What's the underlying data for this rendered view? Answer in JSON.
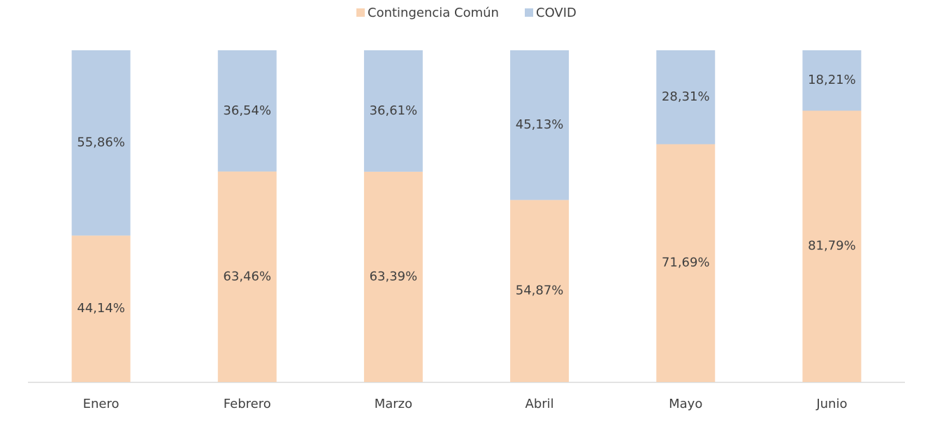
{
  "chart_data": {
    "type": "stacked_bar",
    "categories": [
      "Enero",
      "Febrero",
      "Marzo",
      "Abril",
      "Mayo",
      "Junio"
    ],
    "series": [
      {
        "name": "Contingencia Común",
        "color": "#f9d3b3",
        "values": [
          44.14,
          63.46,
          63.39,
          54.87,
          71.69,
          81.79
        ],
        "value_labels": [
          "44,14%",
          "63,46%",
          "63,39%",
          "54,87%",
          "71,69%",
          "81,79%"
        ]
      },
      {
        "name": "COVID",
        "color": "#b9cde5",
        "values": [
          55.86,
          36.54,
          36.61,
          45.13,
          28.31,
          18.21
        ],
        "value_labels": [
          "55,86%",
          "36,54%",
          "36,61%",
          "45,13%",
          "28,31%",
          "18,21%"
        ]
      }
    ],
    "ylim": [
      0,
      100
    ],
    "legend": "top"
  }
}
